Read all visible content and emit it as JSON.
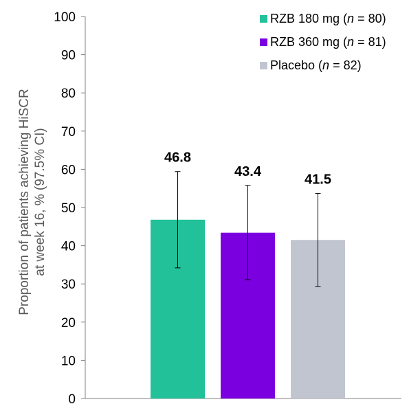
{
  "chart_data": {
    "type": "bar",
    "title": "",
    "ylabel_lines": [
      "Proportion of patients achieving HiSCR",
      "at week 16, % (97.5% CI)"
    ],
    "xlabel": "",
    "ylim": [
      0,
      100
    ],
    "yticks": [
      0,
      10,
      20,
      30,
      40,
      50,
      60,
      70,
      80,
      90,
      100
    ],
    "grid": false,
    "legend_position": "top-right",
    "series": [
      {
        "name_parts": [
          "RZB 180 mg (",
          "n",
          " = 80)"
        ],
        "value": 46.8,
        "value_label": "46.8",
        "ci_low": 34.2,
        "ci_high": 59.4,
        "color": "#22C19A"
      },
      {
        "name_parts": [
          "RZB 360 mg (",
          "n",
          " = 81)"
        ],
        "value": 43.4,
        "value_label": "43.4",
        "ci_low": 31.1,
        "ci_high": 55.8,
        "color": "#7B00E0"
      },
      {
        "name_parts": [
          "Placebo (",
          "n",
          " = 82)"
        ],
        "value": 41.5,
        "value_label": "41.5",
        "ci_low": 29.3,
        "ci_high": 53.7,
        "color": "#C1C5CF"
      }
    ]
  }
}
